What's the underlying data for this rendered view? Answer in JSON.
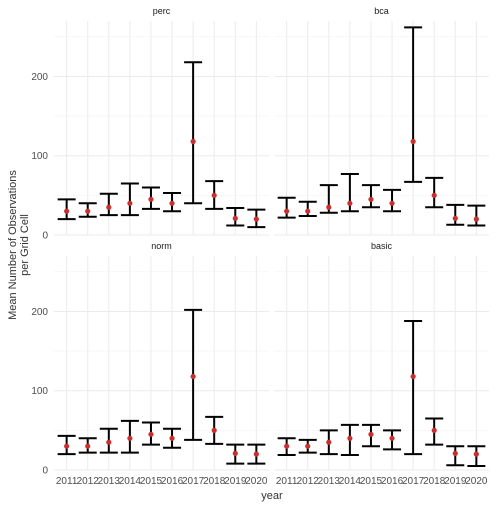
{
  "chart_data": {
    "type": "errorbar",
    "xlabel": "year",
    "ylabel_lines": [
      "Mean Number of Observations",
      "per Grid Cell"
    ],
    "years": [
      "2011",
      "2012",
      "2013",
      "2014",
      "2015",
      "2016",
      "2017",
      "2018",
      "2019",
      "2020"
    ],
    "ylim": [
      0,
      270
    ],
    "yticks": [
      0,
      100,
      200
    ],
    "grid": true,
    "point_color": "#CC2E2E",
    "bar_color": "#000000",
    "panels": [
      {
        "name": "perc",
        "means": [
          30,
          30,
          35,
          40,
          45,
          40,
          118,
          50,
          21,
          20
        ],
        "lower": [
          20,
          23,
          25,
          25,
          33,
          30,
          40,
          33,
          12,
          10
        ],
        "upper": [
          45,
          40,
          52,
          65,
          60,
          53,
          218,
          68,
          34,
          32
        ]
      },
      {
        "name": "bca",
        "means": [
          30,
          30,
          35,
          40,
          45,
          40,
          118,
          50,
          21,
          20
        ],
        "lower": [
          22,
          24,
          28,
          30,
          35,
          30,
          67,
          35,
          13,
          12
        ],
        "upper": [
          47,
          42,
          63,
          77,
          63,
          57,
          262,
          72,
          38,
          37
        ]
      },
      {
        "name": "norm",
        "means": [
          30,
          30,
          35,
          40,
          45,
          40,
          118,
          50,
          21,
          20
        ],
        "lower": [
          20,
          22,
          22,
          22,
          32,
          28,
          38,
          33,
          8,
          8
        ],
        "upper": [
          43,
          40,
          52,
          62,
          60,
          52,
          202,
          67,
          32,
          32
        ]
      },
      {
        "name": "basic",
        "means": [
          30,
          30,
          35,
          40,
          45,
          40,
          118,
          50,
          21,
          20
        ],
        "lower": [
          19,
          22,
          20,
          19,
          30,
          26,
          20,
          32,
          6,
          5
        ],
        "upper": [
          40,
          38,
          50,
          57,
          57,
          50,
          188,
          65,
          30,
          30
        ]
      }
    ]
  }
}
